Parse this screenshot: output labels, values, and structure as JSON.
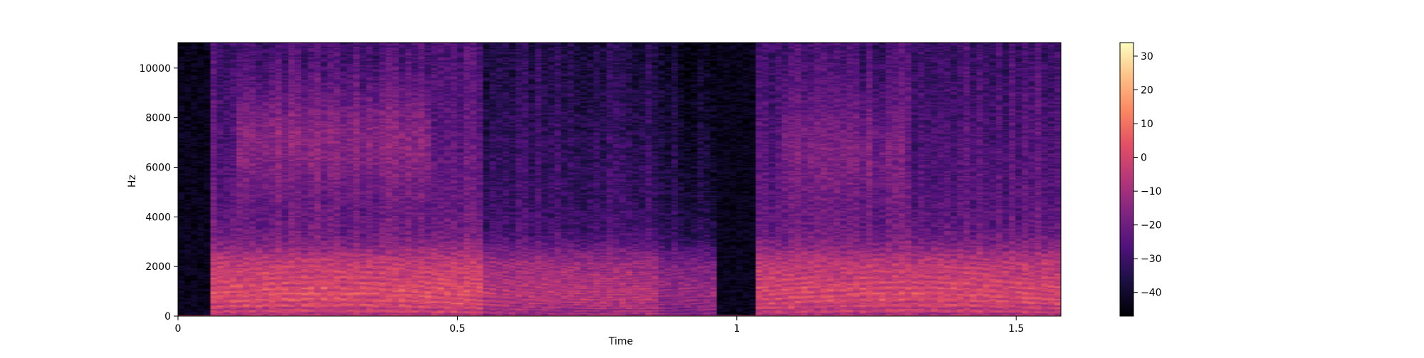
{
  "chart_data": {
    "type": "heatmap",
    "title": "",
    "xlabel": "Time",
    "ylabel": "Hz",
    "xlim": [
      0,
      1.58
    ],
    "ylim": [
      0,
      11025
    ],
    "x_ticks": [
      0,
      0.5,
      1,
      1.5
    ],
    "x_tick_labels": [
      "0",
      "0.5",
      "1",
      "1.5"
    ],
    "y_ticks": [
      0,
      2000,
      4000,
      6000,
      8000,
      10000
    ],
    "y_tick_labels": [
      "0",
      "2000",
      "4000",
      "6000",
      "8000",
      "10000"
    ],
    "colormap": "magma",
    "colorbar": {
      "range": [
        -47,
        34
      ],
      "ticks": [
        -40,
        -30,
        -20,
        -10,
        0,
        10,
        20,
        30
      ],
      "tick_labels": [
        "−40",
        "−30",
        "−20",
        "−10",
        "0",
        "10",
        "20",
        "30"
      ]
    },
    "grid": false,
    "colors": {
      "background": "#000004",
      "low": "#000004",
      "mid": "#b63679",
      "high": "#fcfdbf"
    }
  }
}
